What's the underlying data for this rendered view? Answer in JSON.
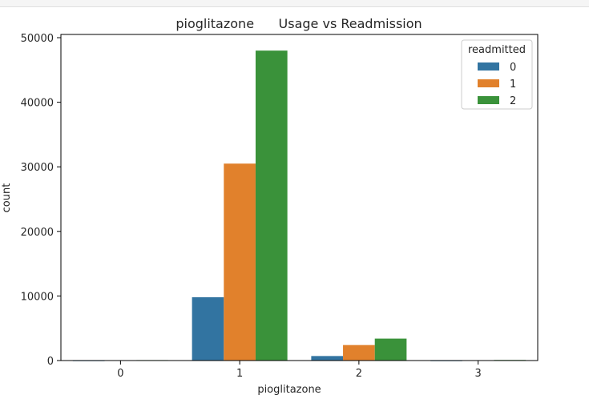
{
  "chart_data": {
    "type": "bar",
    "title": "pioglitazone      Usage vs Readmission",
    "xlabel": "pioglitazone",
    "ylabel": "count",
    "categories": [
      "0",
      "1",
      "2",
      "3"
    ],
    "ylim": [
      0,
      50500
    ],
    "yticks": [
      0,
      10000,
      20000,
      30000,
      40000,
      50000
    ],
    "grid": false,
    "legend": {
      "title": "readmitted",
      "placement": "top-right"
    },
    "series": [
      {
        "name": "0",
        "color": "#3274a1",
        "values": [
          10,
          9800,
          700,
          5
        ]
      },
      {
        "name": "1",
        "color": "#e1812c",
        "values": [
          50,
          30500,
          2400,
          60
        ]
      },
      {
        "name": "2",
        "color": "#3a923a",
        "values": [
          70,
          48000,
          3400,
          90
        ]
      }
    ]
  }
}
